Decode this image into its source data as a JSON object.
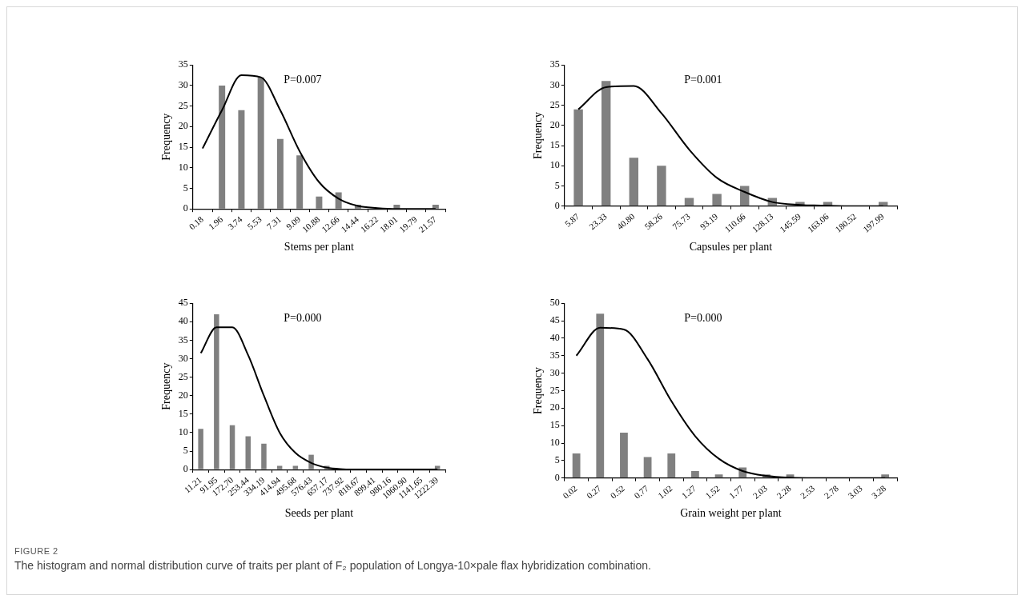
{
  "chart_data": [
    {
      "type": "bar",
      "xlabel": "Stems per plant",
      "ylabel": "Frequency",
      "categories": [
        "0.18",
        "1.96",
        "3.74",
        "5.53",
        "7.31",
        "9.09",
        "10.88",
        "12.66",
        "14.44",
        "16.22",
        "18.01",
        "19.79",
        "21.57"
      ],
      "series": [
        {
          "color": "#808080",
          "values": [
            0,
            30,
            24,
            32,
            17,
            13,
            3,
            4,
            1,
            0,
            1,
            0,
            1
          ]
        },
        {
          "type": "line",
          "color": "#000000",
          "values": [
            14.7,
            24,
            32.5,
            32,
            24,
            14,
            6.5,
            2.5,
            0.7,
            0.2,
            0,
            0,
            0
          ]
        }
      ],
      "ylim": [
        0,
        35
      ],
      "yticks": [
        0,
        5,
        10,
        15,
        20,
        25,
        30,
        35
      ],
      "annotations": [
        "P=0.007"
      ]
    },
    {
      "type": "bar",
      "xlabel": "Capsules per plant",
      "ylabel": "Frequency",
      "categories": [
        "5.87",
        "23.33",
        "40.80",
        "58.26",
        "75.73",
        "93.19",
        "110.66",
        "128.13",
        "145.59",
        "163.06",
        "180.52",
        "197.99"
      ],
      "series": [
        {
          "color": "#808080",
          "values": [
            24,
            31,
            12,
            10,
            2,
            3,
            5,
            2,
            1,
            1,
            0,
            1
          ]
        },
        {
          "type": "line",
          "color": "#000000",
          "values": [
            24,
            29.5,
            29.8,
            23,
            14,
            7,
            3.5,
            1,
            0.3,
            0.1,
            0,
            0
          ]
        }
      ],
      "ylim": [
        0,
        35
      ],
      "yticks": [
        0,
        5,
        10,
        15,
        20,
        25,
        30,
        35
      ],
      "annotations": [
        "P=0.001"
      ]
    },
    {
      "type": "bar",
      "xlabel": "Seeds per plant",
      "ylabel": "Frequency",
      "categories": [
        "11.21",
        "91.95",
        "172.70",
        "253.44",
        "334.19",
        "414.94",
        "495.68",
        "576.43",
        "657.17",
        "737.92",
        "818.67",
        "899.41",
        "980.16",
        "1060.90",
        "1141.65",
        "1222.39"
      ],
      "series": [
        {
          "color": "#808080",
          "values": [
            11,
            42,
            12,
            9,
            7,
            1,
            1,
            4,
            1,
            0,
            0,
            0,
            0,
            0,
            0,
            1
          ]
        },
        {
          "type": "line",
          "color": "#000000",
          "values": [
            31.5,
            38.5,
            38.5,
            31,
            20,
            10,
            4.5,
            1.8,
            0.5,
            0.1,
            0,
            0,
            0,
            0,
            0,
            0
          ]
        }
      ],
      "ylim": [
        0,
        45
      ],
      "yticks": [
        0,
        5,
        10,
        15,
        20,
        25,
        30,
        35,
        40,
        45
      ],
      "annotations": [
        "P=0.000"
      ]
    },
    {
      "type": "bar",
      "xlabel": "Grain weight per plant",
      "ylabel": "Frequency",
      "categories": [
        "0.02",
        "0.27",
        "0.52",
        "0.77",
        "1.02",
        "1.27",
        "1.52",
        "1.77",
        "2.03",
        "2.28",
        "2.53",
        "2.78",
        "3.03",
        "3.28"
      ],
      "series": [
        {
          "color": "#808080",
          "values": [
            7,
            47,
            13,
            6,
            7,
            2,
            1,
            3,
            1,
            1,
            0,
            0,
            0,
            1
          ]
        },
        {
          "type": "line",
          "color": "#000000",
          "values": [
            35,
            43,
            42.5,
            34,
            22,
            12,
            5.5,
            2,
            0.6,
            0.1,
            0,
            0,
            0,
            0
          ]
        }
      ],
      "ylim": [
        0,
        50
      ],
      "yticks": [
        0,
        5,
        10,
        15,
        20,
        25,
        30,
        35,
        40,
        45,
        50
      ],
      "annotations": [
        "P=0.000",
        "FIGURE 2",
        "The histogram and normal distribution curve of traits per plant of F₂ population of Longya-10×pale flax hybridization combination."
      ]
    }
  ]
}
